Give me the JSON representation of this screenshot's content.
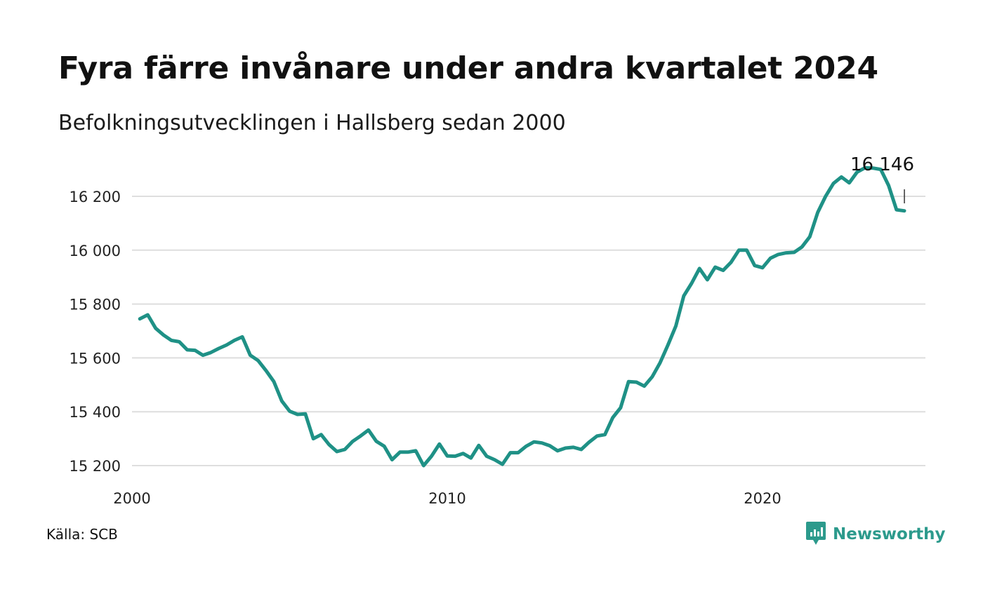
{
  "title": "Fyra färre invånare under andra kvartalet 2024",
  "subtitle": "Befolkningsutvecklingen i Hallsberg sedan 2000",
  "source": "Källa: SCB",
  "brand": {
    "name": "Newsworthy",
    "icon": "newsworthy-logo-icon",
    "color": "#2c9a8c"
  },
  "chart_data": {
    "type": "line",
    "title": "Fyra färre invånare under andra kvartalet 2024",
    "subtitle": "Befolkningsutvecklingen i Hallsberg sedan 2000",
    "xlabel": "",
    "ylabel": "",
    "xlim": [
      2000.0,
      2025.0
    ],
    "ylim": [
      15200,
      16350
    ],
    "x_ticks": [
      2000,
      2010,
      2020
    ],
    "x_tick_labels": [
      "2000",
      "2010",
      "2020"
    ],
    "y_ticks": [
      15200,
      15400,
      15600,
      15800,
      16000,
      16200
    ],
    "y_tick_labels": [
      "15 200",
      "15 400",
      "15 600",
      "15 800",
      "16 000",
      "16 200"
    ],
    "grid": true,
    "line_color": "#1f9186",
    "series": [
      {
        "x_start": 2000.25,
        "x_step": 0.25,
        "values": [
          15745,
          15760,
          15710,
          15685,
          15665,
          15660,
          15630,
          15628,
          15610,
          15620,
          15635,
          15648,
          15665,
          15678,
          15610,
          15590,
          15553,
          15512,
          15440,
          15402,
          15390,
          15392,
          15300,
          15315,
          15278,
          15252,
          15260,
          15290,
          15310,
          15332,
          15290,
          15272,
          15222,
          15250,
          15250,
          15255,
          15200,
          15235,
          15280,
          15236,
          15235,
          15245,
          15228,
          15275,
          15235,
          15222,
          15205,
          15248,
          15248,
          15272,
          15288,
          15284,
          15274,
          15255,
          15265,
          15268,
          15260,
          15287,
          15310,
          15315,
          15378,
          15415,
          15512,
          15510,
          15495,
          15530,
          15582,
          15648,
          15718,
          15830,
          15877,
          15932,
          15890,
          15937,
          15925,
          15955,
          16000,
          16000,
          15943,
          15935,
          15970,
          15984,
          15990,
          15992,
          16012,
          16050,
          16140,
          16200,
          16248,
          16272,
          16250,
          16290,
          16306,
          16305,
          16300,
          16240,
          16150,
          16146
        ]
      }
    ],
    "annotation": {
      "text": "16 146",
      "value": 16146,
      "x": 2024.5
    }
  }
}
